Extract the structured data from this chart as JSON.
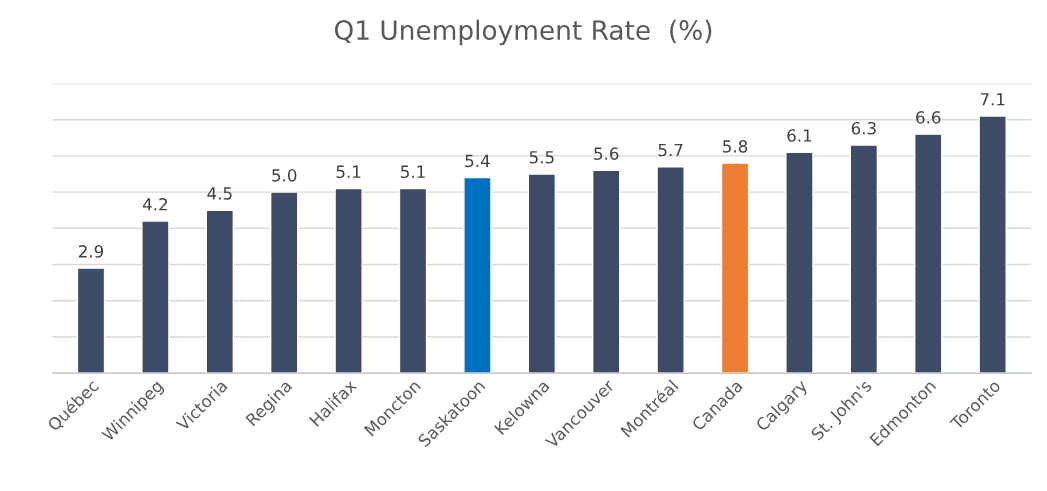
{
  "chart_data": {
    "type": "bar",
    "title": "Q1 Unemployment Rate  (%)",
    "value_labels": [
      "2.9",
      "4.2",
      "4.5",
      "5.0",
      "5.1",
      "5.1",
      "5.4",
      "5.5",
      "5.6",
      "5.7",
      "5.8",
      "6.1",
      "6.3",
      "6.6",
      "7.1"
    ],
    "categories": [
      "Québec",
      "Winnipeg",
      "Victoria",
      "Regina",
      "Halifax",
      "Moncton",
      "Saskatoon",
      "Kelowna",
      "Vancouver",
      "Montréal",
      "Canada",
      "Calgary",
      "St. John's",
      "Edmonton",
      "Toronto"
    ],
    "values": [
      2.9,
      4.2,
      4.5,
      5.0,
      5.1,
      5.1,
      5.4,
      5.5,
      5.6,
      5.7,
      5.8,
      6.1,
      6.3,
      6.6,
      7.1
    ],
    "colors": [
      "#3d4b66",
      "#3d4b66",
      "#3d4b66",
      "#3d4b66",
      "#3d4b66",
      "#3d4b66",
      "#0070c0",
      "#3d4b66",
      "#3d4b66",
      "#3d4b66",
      "#ed7d31",
      "#3d4b66",
      "#3d4b66",
      "#3d4b66",
      "#3d4b66"
    ],
    "ylim": [
      0,
      8
    ],
    "yticks": [
      {
        "value": 0,
        "label": null
      },
      {
        "value": 1,
        "label": null
      },
      {
        "value": 2,
        "label": null
      },
      {
        "value": 3,
        "label": null
      },
      {
        "value": 4,
        "label": null
      },
      {
        "value": 5,
        "label": null
      },
      {
        "value": 6,
        "label": null
      },
      {
        "value": 7,
        "label": null
      },
      {
        "value": 8,
        "label": null
      }
    ],
    "grid": "y",
    "tick_labels": "x"
  }
}
